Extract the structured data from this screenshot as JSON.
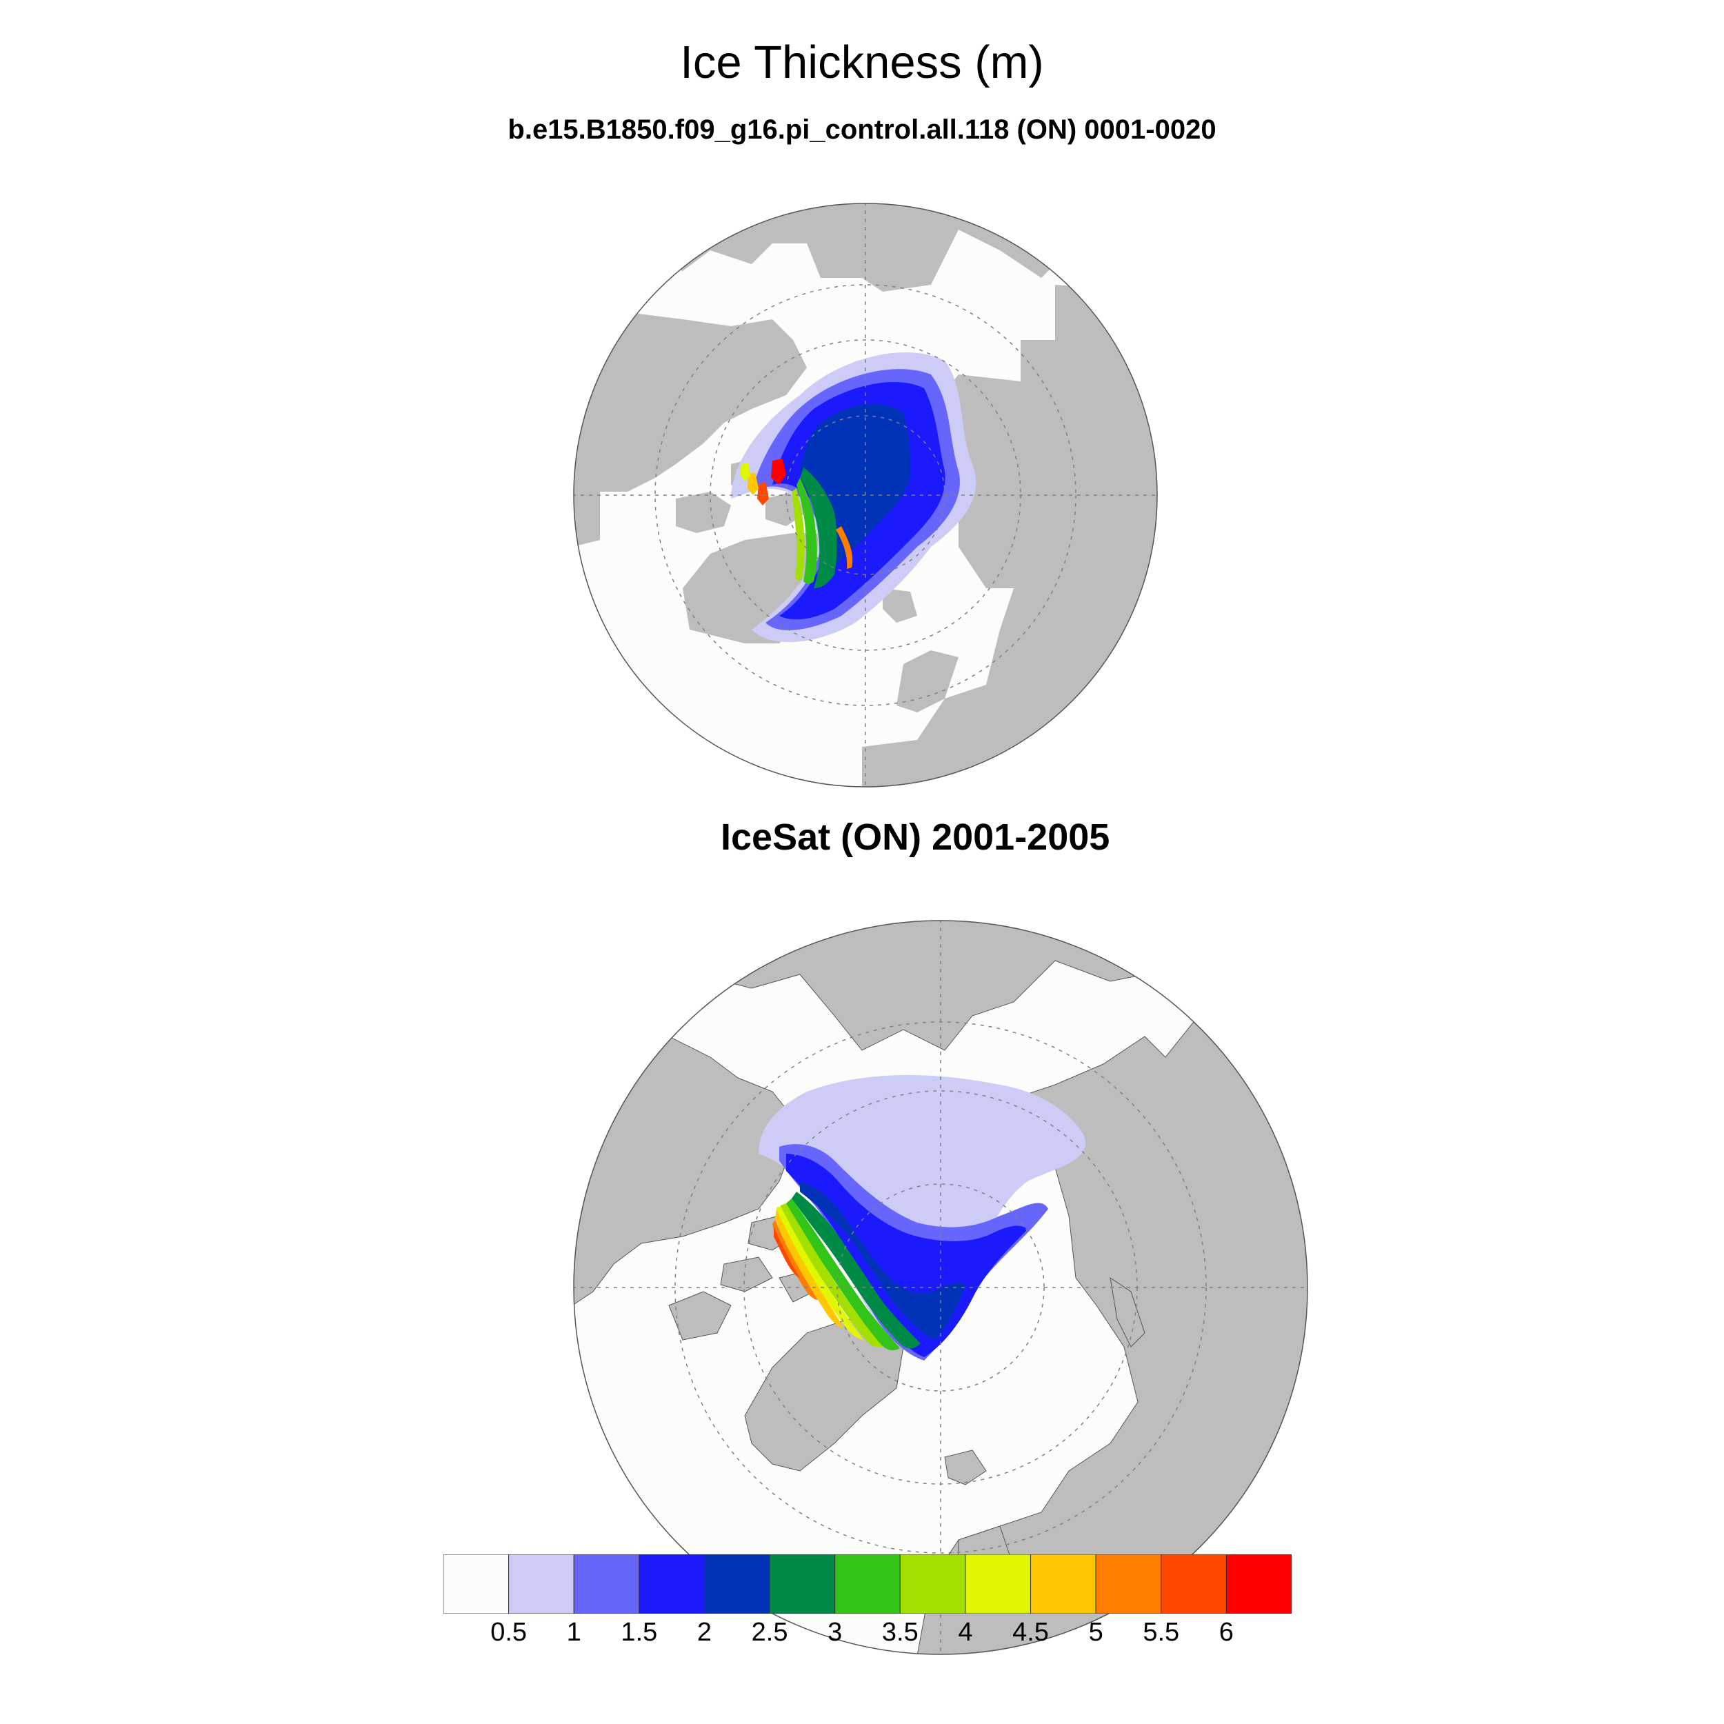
{
  "figure": {
    "title": "Ice Thickness (m)",
    "subtitle": "b.e15.B1850.f09_g16.pi_control.all.118 (ON) 0001-0020",
    "panel2_title": "IceSat (ON) 2001-2005"
  },
  "colors": {
    "land": "#bdbdbd",
    "ocean_open": "#fcfcfa",
    "gridline": "#808080"
  },
  "chart_data": {
    "type": "heatmap",
    "colorbar": {
      "levels": [
        "0.5",
        "1",
        "1.5",
        "2",
        "2.5",
        "3",
        "3.5",
        "4",
        "4.5",
        "5",
        "5.5",
        "6"
      ],
      "colors": [
        "#fcfcfa",
        "#ccccf7",
        "#6666fc",
        "#1a1afc",
        "#0033b8",
        "#008a47",
        "#33c41a",
        "#a3e000",
        "#e0f700",
        "#ffc700",
        "#ff7d00",
        "#ff4700",
        "#ff0000"
      ]
    },
    "panels": [
      {
        "name": "model",
        "label": "b.e15.B1850.f09_g16.pi_control.all.118 (ON) 0001-0020",
        "projection": "north polar stereographic",
        "max_thickness_m": 6
      },
      {
        "name": "observations",
        "label": "IceSat (ON) 2001-2005",
        "projection": "north polar stereographic",
        "max_thickness_m": 5.5
      }
    ]
  }
}
